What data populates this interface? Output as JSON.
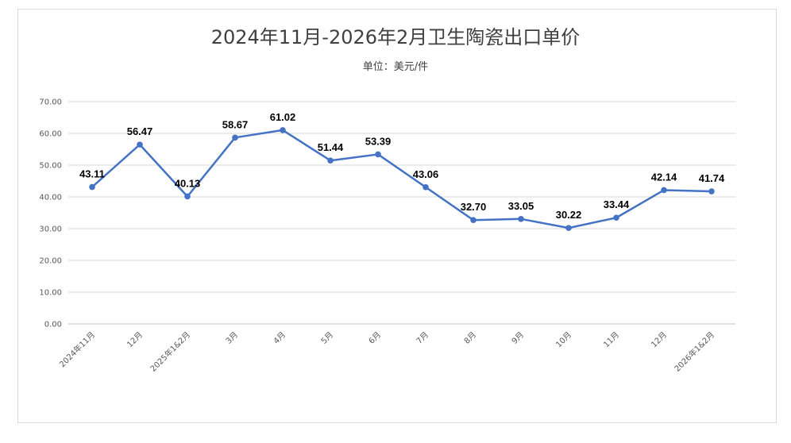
{
  "chart_data": {
    "type": "line",
    "title": "2024年11月-2026年2月卫生陶瓷出口单价",
    "subtitle": "单位：美元/件",
    "categories": [
      "2024年11月",
      "12月",
      "2025年1&2月",
      "3月",
      "4月",
      "5月",
      "6月",
      "7月",
      "8月",
      "9月",
      "10月",
      "11月",
      "12月",
      "2026年1&2月"
    ],
    "series": [
      {
        "values": [
          43.11,
          56.47,
          40.13,
          58.67,
          61.02,
          51.44,
          53.39,
          43.06,
          32.7,
          33.05,
          30.22,
          33.44,
          42.14,
          41.74
        ],
        "labels": [
          "43.11",
          "56.47",
          "40.13",
          "58.67",
          "61.02",
          "51.44",
          "53.39",
          "43.06",
          "32.70",
          "33.05",
          "30.22",
          "33.44",
          "42.14",
          "41.74"
        ],
        "color": "#4472c4"
      }
    ],
    "ylim": [
      0,
      70
    ],
    "yticks": [
      "0.00",
      "10.00",
      "20.00",
      "30.00",
      "40.00",
      "50.00",
      "60.00",
      "70.00"
    ],
    "grid": true,
    "legend": "none"
  }
}
